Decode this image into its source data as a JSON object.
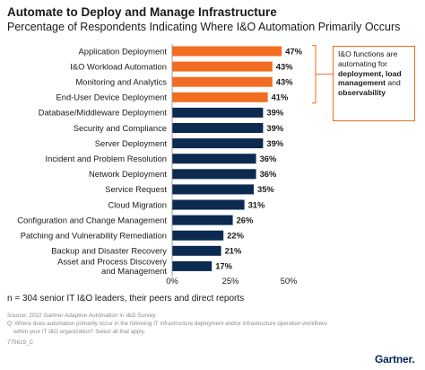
{
  "header": {
    "title": "Automate to Deploy and Manage Infrastructure",
    "subtitle": "Percentage of Respondents Indicating Where I&O Automation Primarily Occurs"
  },
  "chart_data": {
    "type": "bar",
    "orientation": "horizontal",
    "xlim": [
      0,
      50
    ],
    "x_ticks": [
      "0%",
      "25%",
      "50%"
    ],
    "grid": false,
    "bars": [
      {
        "category": "Application Deployment",
        "value": 47,
        "label": "47%",
        "highlight": true
      },
      {
        "category": "I&O Workload Automation",
        "value": 43,
        "label": "43%",
        "highlight": true
      },
      {
        "category": "Monitoring and Analytics",
        "value": 43,
        "label": "43%",
        "highlight": true
      },
      {
        "category": "End-User Device Deployment",
        "value": 41,
        "label": "41%",
        "highlight": true
      },
      {
        "category": "Database/Middleware Deployment",
        "value": 39,
        "label": "39%",
        "highlight": false
      },
      {
        "category": "Security and Compliance",
        "value": 39,
        "label": "39%",
        "highlight": false
      },
      {
        "category": "Server Deployment",
        "value": 39,
        "label": "39%",
        "highlight": false
      },
      {
        "category": "Incident and Problem Resolution",
        "value": 36,
        "label": "36%",
        "highlight": false
      },
      {
        "category": "Network Deployment",
        "value": 36,
        "label": "36%",
        "highlight": false
      },
      {
        "category": "Service Request",
        "value": 35,
        "label": "35%",
        "highlight": false
      },
      {
        "category": "Cloud Migration",
        "value": 31,
        "label": "31%",
        "highlight": false
      },
      {
        "category": "Configuration and Change Management",
        "value": 26,
        "label": "26%",
        "highlight": false
      },
      {
        "category": "Patching and Vulnerability Remediation",
        "value": 22,
        "label": "22%",
        "highlight": false
      },
      {
        "category": "Backup and Disaster Recovery",
        "value": 21,
        "label": "21%",
        "highlight": false
      },
      {
        "category": "Asset and Process Discovery and Management",
        "category_lines": [
          "Asset and Process Discovery",
          "and Management"
        ],
        "value": 17,
        "label": "17%",
        "highlight": false
      }
    ],
    "colors": {
      "highlight": "#f26d21",
      "default": "#0b2a4f"
    },
    "annotation": {
      "prefix": "I&O functions are automating for ",
      "bold1": "deployment, load management",
      "middle": " and ",
      "bold2": "observability"
    }
  },
  "footer": {
    "note": "n = 304 senior IT I&O leaders, their peers and direct reports",
    "source": "Source: 2022 Gartner Adaptive Automation in I&O Survey",
    "question_line1": "Q: Where does automation primarily occur in the following IT infrastructure deployment and/or infrastructure operation workflows",
    "question_line2": "within your IT I&O organization? Select all that apply.",
    "doc_id": "775619_C",
    "logo": "Gartner."
  }
}
